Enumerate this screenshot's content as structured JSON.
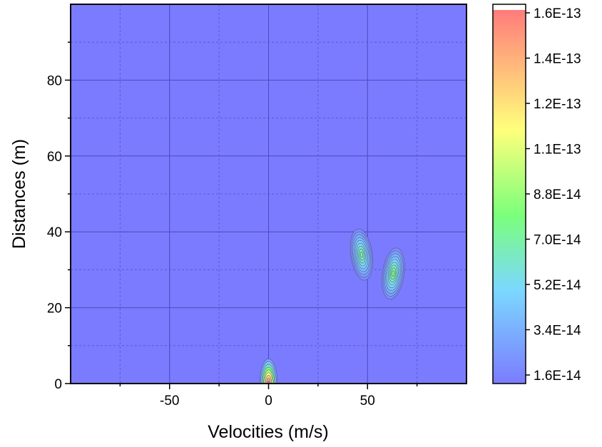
{
  "chart_data": {
    "type": "heatmap",
    "subtype": "contour",
    "title": "",
    "xlabel": "Velocities (m/s)",
    "ylabel": "Distances (m)",
    "xlim": [
      -100,
      100
    ],
    "ylim": [
      0,
      100
    ],
    "x_ticks": [
      -50,
      0,
      50
    ],
    "y_ticks": [
      0,
      20,
      40,
      60,
      80
    ],
    "grid": true,
    "background_level": 1.6e-14,
    "peaks": [
      {
        "x": 0,
        "y": 0,
        "value": 1.6e-13
      },
      {
        "x": 47,
        "y": 34,
        "value": 7.5e-14
      },
      {
        "x": 63,
        "y": 29,
        "value": 8.2e-14
      }
    ],
    "colorbar": {
      "labels": [
        "1.6E-13",
        "1.4E-13",
        "1.2E-13",
        "1.1E-13",
        "8.8E-14",
        "7.0E-14",
        "5.2E-14",
        "3.4E-14",
        "1.6E-14"
      ],
      "min": 1.6e-14,
      "max": 1.6e-13,
      "colors": [
        "#7b7bff",
        "#7bd8ff",
        "#7bff7b",
        "#ffff7b",
        "#ff7b7b",
        "#ffffff"
      ]
    }
  }
}
